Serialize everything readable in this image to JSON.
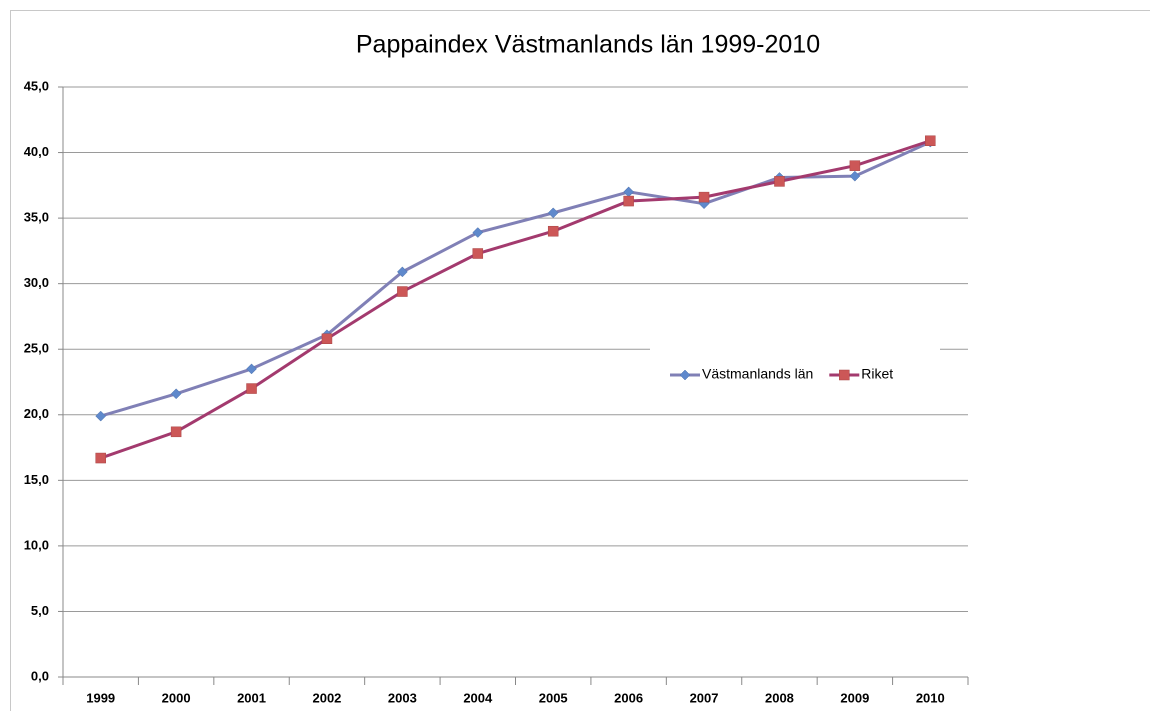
{
  "chart_data": {
    "type": "line",
    "title": "Pappaindex Västmanlands län 1999-2010",
    "categories": [
      "1999",
      "2000",
      "2001",
      "2002",
      "2003",
      "2004",
      "2005",
      "2006",
      "2007",
      "2008",
      "2009",
      "2010"
    ],
    "series": [
      {
        "name": "Västmanlands län",
        "color": "#8080b6",
        "marker_color": "#5f89cc",
        "marker": "diamond",
        "values": [
          19.9,
          21.6,
          23.5,
          26.1,
          30.9,
          33.9,
          35.4,
          37.0,
          36.1,
          38.1,
          38.2,
          40.8
        ]
      },
      {
        "name": "Riket",
        "color": "#a33a6e",
        "marker_color": "#cc5757",
        "marker": "square",
        "values": [
          16.7,
          18.7,
          22.0,
          25.8,
          29.4,
          32.3,
          34.0,
          36.3,
          36.6,
          37.8,
          39.0,
          40.9
        ]
      }
    ],
    "ylim": [
      0,
      45
    ],
    "yticks": [
      {
        "value": 0,
        "label": "0,0"
      },
      {
        "value": 5,
        "label": "5,0"
      },
      {
        "value": 10,
        "label": "10,0"
      },
      {
        "value": 15,
        "label": "15,0"
      },
      {
        "value": 20,
        "label": "20,0"
      },
      {
        "value": 25,
        "label": "25,0"
      },
      {
        "value": 30,
        "label": "30,0"
      },
      {
        "value": 35,
        "label": "35,0"
      },
      {
        "value": 40,
        "label": "40,0"
      },
      {
        "value": 45,
        "label": "45,0"
      }
    ],
    "grid": true,
    "legend": "right"
  }
}
